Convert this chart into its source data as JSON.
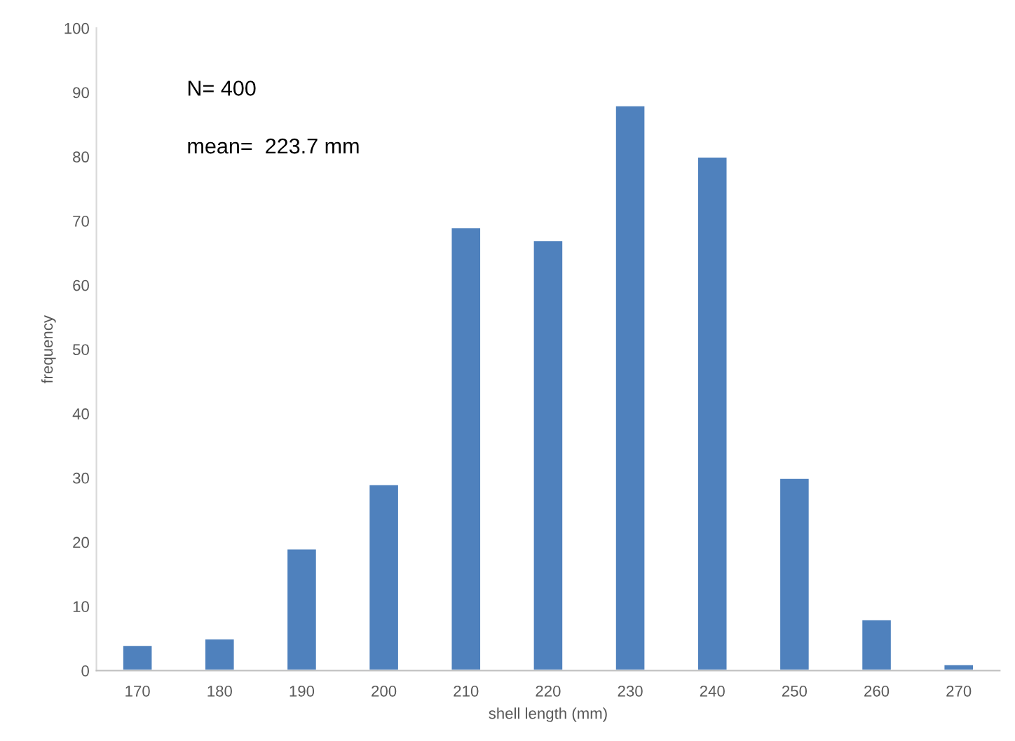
{
  "chart_data": {
    "type": "bar",
    "xlabel": "shell length (mm)",
    "ylabel": "frequency",
    "categories": [
      "170",
      "180",
      "190",
      "200",
      "210",
      "220",
      "230",
      "240",
      "250",
      "260",
      "270"
    ],
    "values": [
      4,
      5,
      19,
      29,
      69,
      67,
      88,
      80,
      30,
      8,
      1
    ],
    "color": "#4f81bd",
    "ylim": [
      0,
      100
    ],
    "yticks": [
      0,
      10,
      20,
      30,
      40,
      50,
      60,
      70,
      80,
      90,
      100
    ],
    "annotations": [
      "N= 400",
      "mean=  223.7 mm"
    ]
  }
}
